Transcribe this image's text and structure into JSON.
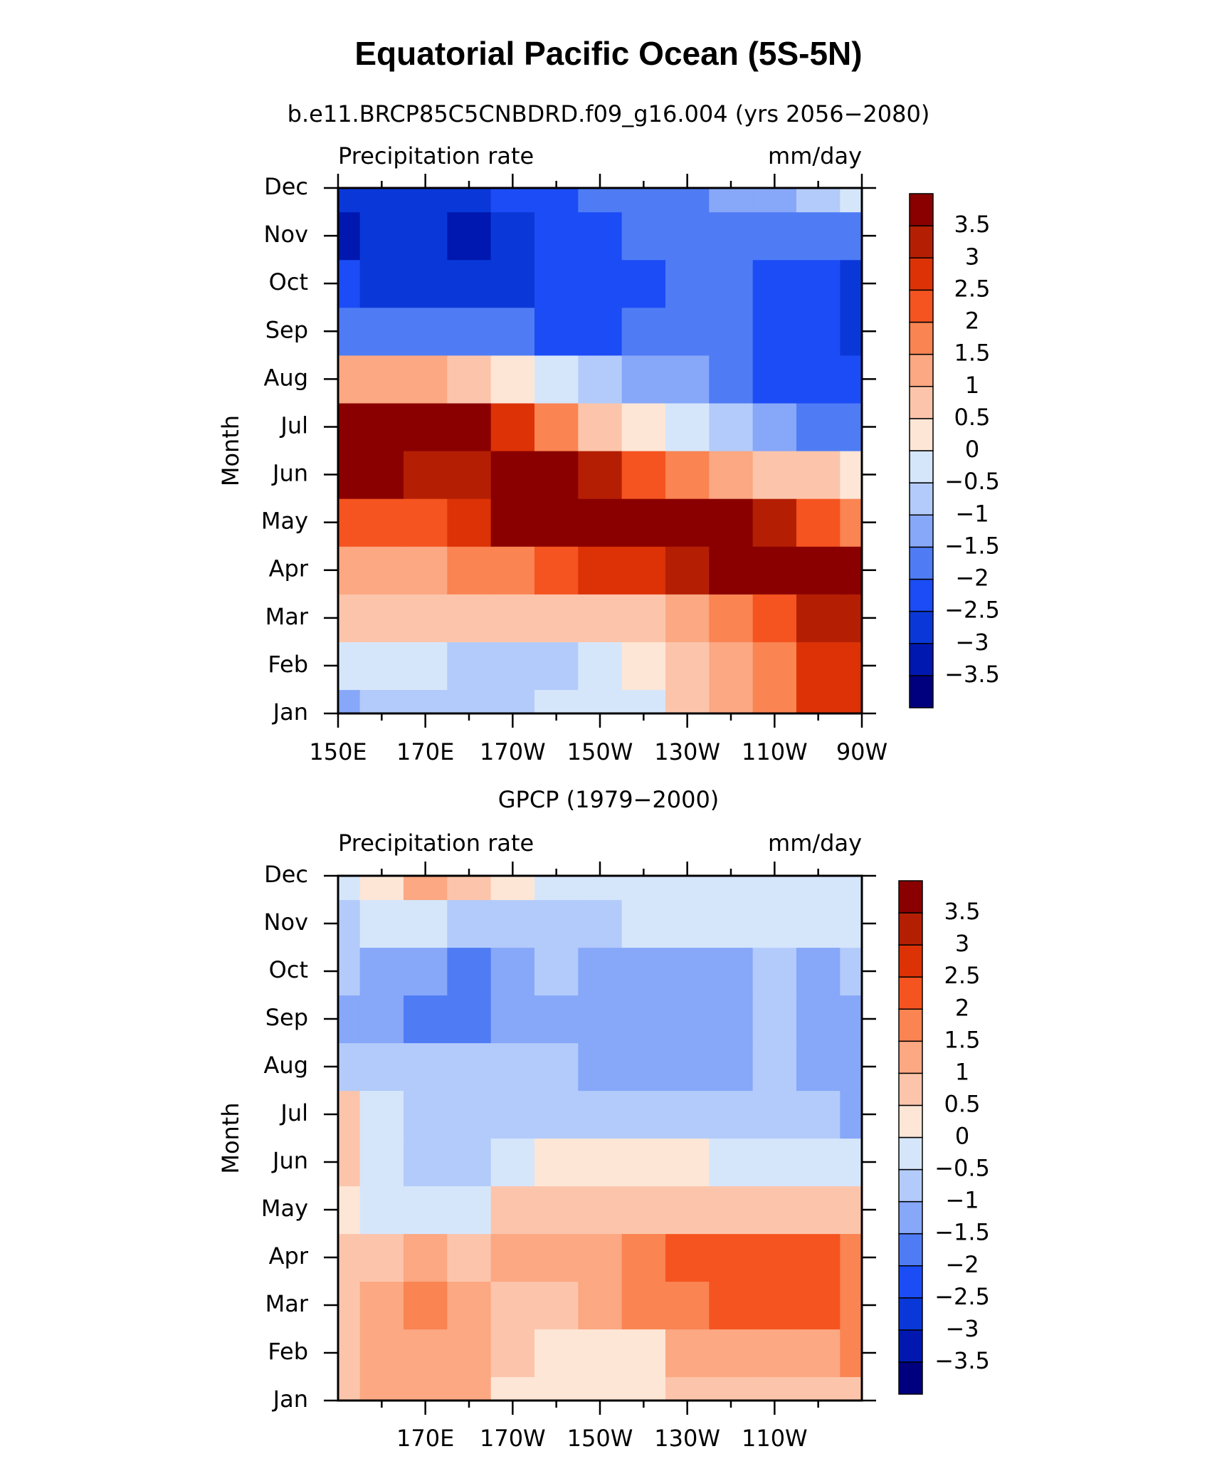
{
  "chart_data": [
    {
      "type": "contour",
      "title": "Equatorial Pacific Ocean (5S-5N)",
      "subtitle": "b.e11.BRCP85C5CNBDRD.f09_g16.004 (yrs 2056−2080)",
      "left_label": "Precipitation rate",
      "right_label": "mm/day",
      "ylabel": "Month",
      "x": [
        150,
        160,
        170,
        180,
        190,
        200,
        210,
        220,
        230,
        240,
        250,
        260,
        270
      ],
      "categories": [
        "Jan",
        "Feb",
        "Mar",
        "Apr",
        "May",
        "Jun",
        "Jul",
        "Aug",
        "Sep",
        "Oct",
        "Nov",
        "Dec"
      ],
      "xlim": [
        150,
        270
      ],
      "xticks": [
        {
          "value": 150,
          "label": "150E"
        },
        {
          "value": 170,
          "label": "170E"
        },
        {
          "value": 190,
          "label": "170W"
        },
        {
          "value": 210,
          "label": "150W"
        },
        {
          "value": 230,
          "label": "130W"
        },
        {
          "value": 250,
          "label": "110W"
        },
        {
          "value": 270,
          "label": "90W"
        }
      ],
      "xminor": [
        160,
        180,
        200,
        220,
        240,
        260
      ],
      "values": [
        [
          -1.5,
          -1,
          -1,
          -1,
          -1,
          -0.5,
          -0.5,
          -0.5,
          0.5,
          1,
          1.5,
          2.5,
          2.5
        ],
        [
          -0.5,
          -0.5,
          -0.5,
          -1,
          -1,
          -1,
          -0.5,
          0,
          0.5,
          1,
          1.5,
          2.5,
          2.5
        ],
        [
          0.5,
          0.5,
          0.5,
          0.5,
          0.5,
          0.5,
          0.5,
          0.5,
          1,
          1.5,
          2,
          3,
          3
        ],
        [
          1,
          1,
          1,
          1.5,
          1.5,
          2,
          2.5,
          2.5,
          3,
          3.5,
          4,
          4,
          4
        ],
        [
          2,
          2,
          2,
          2.5,
          4,
          4,
          4,
          4,
          4,
          3.5,
          3,
          2,
          1.5
        ],
        [
          3.5,
          3.5,
          3,
          3,
          4,
          4,
          3,
          2,
          1.5,
          1,
          0.5,
          0.5,
          0
        ],
        [
          4,
          4,
          4,
          3.5,
          2.5,
          1.5,
          0.5,
          0,
          -0.5,
          -1,
          -1.5,
          -2,
          -2
        ],
        [
          1,
          1,
          1,
          0.5,
          0,
          -0.5,
          -1,
          -1.5,
          -1.5,
          -2,
          -2.5,
          -2.5,
          -2.5
        ],
        [
          -2,
          -2,
          -2,
          -2,
          -2,
          -2.5,
          -2.5,
          -2,
          -2,
          -2,
          -2.5,
          -2.5,
          -3
        ],
        [
          -2.5,
          -3,
          -3,
          -3,
          -3,
          -2.5,
          -2.5,
          -2.5,
          -2,
          -2,
          -2.5,
          -2.5,
          -3
        ],
        [
          -3.5,
          -3,
          -3,
          -3.5,
          -3,
          -2.5,
          -2.5,
          -2,
          -2,
          -2,
          -2,
          -2,
          -2
        ],
        [
          -3,
          -3,
          -3,
          -3,
          -2.5,
          -2.5,
          -2,
          -2,
          -2,
          -1.5,
          -1.5,
          -1,
          -0.5
        ]
      ],
      "clim": [
        -4,
        4
      ],
      "colors": [
        "#00007f",
        "#0018b0",
        "#0a38d8",
        "#1c4cf5",
        "#4f7cf5",
        "#87a7f9",
        "#b3cbfa",
        "#d5e6fb",
        "#fde6d6",
        "#fcc5ab",
        "#fba883",
        "#fa8452",
        "#f55420",
        "#dc3206",
        "#b41f04",
        "#8a0000"
      ],
      "cticks": [
        {
          "value": -3.5,
          "label": "−3.5"
        },
        {
          "value": -3,
          "label": "−3"
        },
        {
          "value": -2.5,
          "label": "−2.5"
        },
        {
          "value": -2,
          "label": "−2"
        },
        {
          "value": -1.5,
          "label": "−1.5"
        },
        {
          "value": -1,
          "label": "−1"
        },
        {
          "value": -0.5,
          "label": "−0.5"
        },
        0,
        0.5,
        1,
        1.5,
        2,
        2.5,
        3,
        3.5
      ]
    },
    {
      "type": "contour",
      "title": "GPCP (1979−2000)",
      "left_label": "Precipitation rate",
      "right_label": "mm/day",
      "ylabel": "Month",
      "x": [
        150,
        160,
        170,
        180,
        190,
        200,
        210,
        220,
        230,
        240,
        250,
        260,
        270
      ],
      "categories": [
        "Jan",
        "Feb",
        "Mar",
        "Apr",
        "May",
        "Jun",
        "Jul",
        "Aug",
        "Sep",
        "Oct",
        "Nov",
        "Dec"
      ],
      "xlim": [
        150,
        270
      ],
      "xticks": [
        {
          "value": 170,
          "label": "170E"
        },
        {
          "value": 190,
          "label": "170W"
        },
        {
          "value": 210,
          "label": "150W"
        },
        {
          "value": 230,
          "label": "130W"
        },
        {
          "value": 250,
          "label": "110W"
        }
      ],
      "xminor": [
        160,
        180,
        200,
        220,
        240,
        260
      ],
      "values": [
        [
          0.5,
          1,
          1,
          1,
          0,
          0,
          0,
          0,
          0.5,
          0.5,
          0.5,
          0.5,
          0.5
        ],
        [
          0.5,
          1,
          1,
          1,
          0.5,
          0,
          0,
          0,
          1,
          1,
          1,
          1,
          1.5
        ],
        [
          0.5,
          1,
          1.5,
          1,
          0.5,
          0.5,
          1,
          1.5,
          1.5,
          2,
          2,
          2,
          1.5
        ],
        [
          0.5,
          0.5,
          1,
          0.5,
          1,
          1,
          1,
          1.5,
          2,
          2,
          2,
          2,
          1.5
        ],
        [
          0,
          -0.5,
          -0.5,
          -0.5,
          0.5,
          0.5,
          0.5,
          0.5,
          0.5,
          0.5,
          0.5,
          0.5,
          0.5
        ],
        [
          0.5,
          -0.5,
          -1,
          -1,
          -0.5,
          0,
          0,
          0,
          0,
          -0.5,
          -0.5,
          -0.5,
          -0.5
        ],
        [
          0.5,
          -0.5,
          -1,
          -1,
          -1,
          -1,
          -1,
          -1,
          -1,
          -1,
          -1,
          -1,
          -1.5
        ],
        [
          -1,
          -1,
          -1,
          -1,
          -1,
          -1,
          -1.5,
          -1.5,
          -1.5,
          -1.5,
          -1,
          -1.5,
          -1.5
        ],
        [
          -1.5,
          -1.5,
          -2,
          -2,
          -1.5,
          -1.5,
          -1.5,
          -1.5,
          -1.5,
          -1.5,
          -1,
          -1.5,
          -1.5
        ],
        [
          -1,
          -1.5,
          -1.5,
          -2,
          -1.5,
          -1,
          -1.5,
          -1.5,
          -1.5,
          -1.5,
          -1,
          -1.5,
          -1
        ],
        [
          -1,
          -0.5,
          -0.5,
          -1,
          -1,
          -1,
          -1,
          -0.5,
          -0.5,
          -0.5,
          -0.5,
          -0.5,
          -0.5
        ],
        [
          -0.5,
          0,
          1,
          0.5,
          0,
          -0.5,
          -0.5,
          -0.5,
          -0.5,
          -0.5,
          -0.5,
          -0.5,
          -0.5
        ]
      ],
      "clim": [
        -4,
        4
      ],
      "colors": [
        "#00007f",
        "#0018b0",
        "#0a38d8",
        "#1c4cf5",
        "#4f7cf5",
        "#87a7f9",
        "#b3cbfa",
        "#d5e6fb",
        "#fde6d6",
        "#fcc5ab",
        "#fba883",
        "#fa8452",
        "#f55420",
        "#dc3206",
        "#b41f04",
        "#8a0000"
      ],
      "cticks": [
        {
          "value": -3.5,
          "label": "−3.5"
        },
        {
          "value": -3,
          "label": "−3"
        },
        {
          "value": -2.5,
          "label": "−2.5"
        },
        {
          "value": -2,
          "label": "−2"
        },
        {
          "value": -1.5,
          "label": "−1.5"
        },
        {
          "value": -1,
          "label": "−1"
        },
        {
          "value": -0.5,
          "label": "−0.5"
        },
        0,
        0.5,
        1,
        1.5,
        2,
        2.5,
        3,
        3.5
      ]
    }
  ]
}
